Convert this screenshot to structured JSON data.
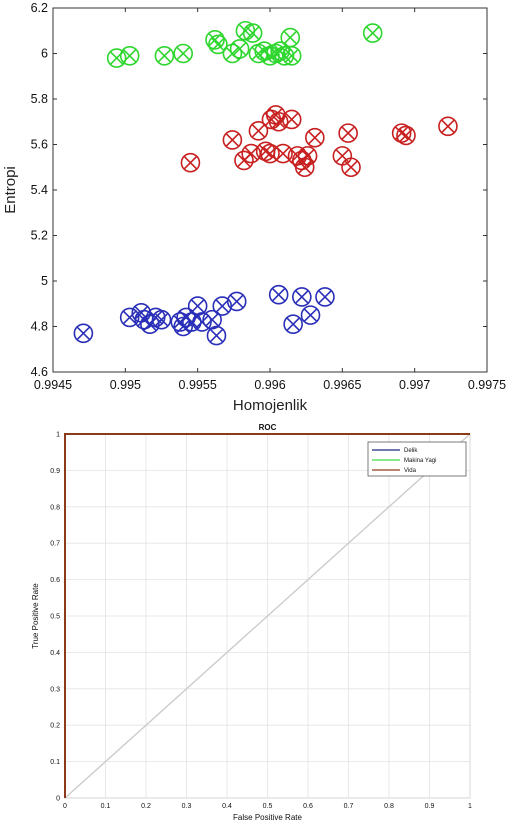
{
  "chart_data": [
    {
      "type": "scatter",
      "title": "",
      "xlabel": "Homojenlik",
      "ylabel": "Entropi",
      "xlim": [
        0.9945,
        0.9975
      ],
      "ylim": [
        4.6,
        6.2
      ],
      "x_ticks": [
        "0.9945",
        "0.995",
        "0.9955",
        "0.996",
        "0.9965",
        "0.997",
        "0.9975"
      ],
      "y_ticks": [
        "4.6",
        "4.8",
        "5",
        "5.2",
        "5.4",
        "5.6",
        "5.8",
        "6",
        "6.2"
      ],
      "grid": false,
      "marker": "circle-x",
      "series": [
        {
          "color": "#2a2fb8",
          "points": [
            [
              0.99471,
              4.77
            ],
            [
              0.99503,
              4.84
            ],
            [
              0.99511,
              4.86
            ],
            [
              0.99513,
              4.83
            ],
            [
              0.99517,
              4.81
            ],
            [
              0.99521,
              4.84
            ],
            [
              0.99525,
              4.83
            ],
            [
              0.99538,
              4.82
            ],
            [
              0.9954,
              4.8
            ],
            [
              0.99542,
              4.84
            ],
            [
              0.99546,
              4.82
            ],
            [
              0.9955,
              4.89
            ],
            [
              0.99553,
              4.82
            ],
            [
              0.9956,
              4.83
            ],
            [
              0.99563,
              4.76
            ],
            [
              0.99567,
              4.89
            ],
            [
              0.99577,
              4.91
            ],
            [
              0.99606,
              4.94
            ],
            [
              0.99616,
              4.81
            ],
            [
              0.99622,
              4.93
            ],
            [
              0.99628,
              4.85
            ],
            [
              0.99638,
              4.93
            ]
          ]
        },
        {
          "color": "#2fd62f",
          "points": [
            [
              0.99494,
              5.98
            ],
            [
              0.99503,
              5.99
            ],
            [
              0.99527,
              5.99
            ],
            [
              0.9954,
              6.0
            ],
            [
              0.99562,
              6.06
            ],
            [
              0.99564,
              6.04
            ],
            [
              0.99574,
              6.0
            ],
            [
              0.99579,
              6.02
            ],
            [
              0.99583,
              6.1
            ],
            [
              0.99588,
              6.09
            ],
            [
              0.99592,
              6.0
            ],
            [
              0.99596,
              6.01
            ],
            [
              0.996,
              5.99
            ],
            [
              0.99604,
              6.0
            ],
            [
              0.99607,
              6.01
            ],
            [
              0.9961,
              5.99
            ],
            [
              0.99614,
              6.07
            ],
            [
              0.99615,
              5.99
            ],
            [
              0.99671,
              6.09
            ]
          ]
        },
        {
          "color": "#c82020",
          "points": [
            [
              0.99545,
              5.52
            ],
            [
              0.99574,
              5.62
            ],
            [
              0.99582,
              5.53
            ],
            [
              0.99587,
              5.56
            ],
            [
              0.99592,
              5.66
            ],
            [
              0.99597,
              5.57
            ],
            [
              0.996,
              5.56
            ],
            [
              0.99601,
              5.71
            ],
            [
              0.99604,
              5.73
            ],
            [
              0.99606,
              5.7
            ],
            [
              0.99609,
              5.56
            ],
            [
              0.99615,
              5.71
            ],
            [
              0.99619,
              5.55
            ],
            [
              0.99622,
              5.53
            ],
            [
              0.99624,
              5.5
            ],
            [
              0.99626,
              5.55
            ],
            [
              0.99631,
              5.63
            ],
            [
              0.9965,
              5.55
            ],
            [
              0.99654,
              5.65
            ],
            [
              0.99656,
              5.5
            ],
            [
              0.99691,
              5.65
            ],
            [
              0.99694,
              5.64
            ],
            [
              0.99723,
              5.68
            ]
          ]
        }
      ]
    },
    {
      "type": "line",
      "title": "ROC",
      "xlabel": "False Positive Rate",
      "ylabel": "True Positive Rate",
      "xlim": [
        0,
        1
      ],
      "ylim": [
        0,
        1
      ],
      "x_ticks": [
        "0",
        "0.1",
        "0.2",
        "0.3",
        "0.4",
        "0.5",
        "0.6",
        "0.7",
        "0.8",
        "0.9",
        "1"
      ],
      "y_ticks": [
        "0",
        "0.1",
        "0.2",
        "0.3",
        "0.4",
        "0.5",
        "0.6",
        "0.7",
        "0.8",
        "0.9",
        "1"
      ],
      "grid": true,
      "legend_position": "top-right",
      "series": [
        {
          "name": "Delik",
          "color": "#1a2a7a",
          "x": [
            0,
            0,
            1
          ],
          "y": [
            0,
            1,
            1
          ]
        },
        {
          "name": "Makina Yagi",
          "color": "#44dd44",
          "x": [
            0,
            0,
            1
          ],
          "y": [
            0,
            1,
            1
          ]
        },
        {
          "name": "Vida",
          "color": "#8b3a1a",
          "x": [
            0,
            0,
            1
          ],
          "y": [
            0,
            1,
            1
          ]
        }
      ],
      "reference_line": {
        "color": "#cccccc",
        "x": [
          0,
          1
        ],
        "y": [
          0,
          1
        ]
      }
    }
  ]
}
